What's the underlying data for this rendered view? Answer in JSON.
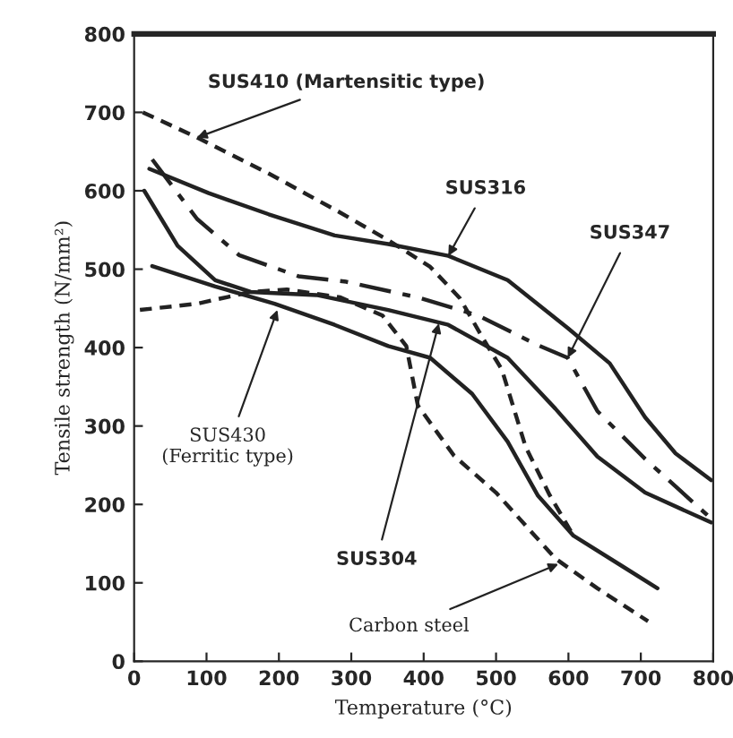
{
  "chart_data": {
    "type": "line",
    "xlabel": "Temperature (°C)",
    "ylabel": "Tensile strength (N/mm²)",
    "xlim": [
      0,
      800
    ],
    "ylim": [
      0,
      800
    ],
    "xticks": [
      0,
      100,
      200,
      300,
      400,
      500,
      600,
      700,
      800
    ],
    "yticks": [
      0,
      100,
      200,
      300,
      400,
      500,
      600,
      700,
      800
    ],
    "grid": false,
    "legend": false,
    "series": [
      {
        "color": "#222222",
        "line_style": "dashed",
        "x": [
          12,
          87,
          186,
          285,
          351,
          409,
          450,
          483,
          508,
          541,
          574,
          607
        ],
        "values": [
          700,
          668,
          622,
          572,
          537,
          503,
          463,
          410,
          372,
          273,
          212,
          160
        ]
      },
      {
        "color": "#222222",
        "line_style": "solid",
        "x": [
          21,
          103,
          186,
          277,
          351,
          434,
          516,
          599,
          657,
          706,
          748,
          797
        ],
        "values": [
          628,
          597,
          570,
          543,
          532,
          517,
          486,
          425,
          380,
          311,
          265,
          231
        ]
      },
      {
        "color": "#222222",
        "line_style": "dashdot",
        "x": [
          25,
          87,
          145,
          227,
          293,
          392,
          475,
          558,
          599,
          640,
          706,
          797
        ],
        "values": [
          640,
          564,
          518,
          491,
          484,
          464,
          441,
          403,
          387,
          319,
          258,
          182
        ]
      },
      {
        "color": "#222222",
        "line_style": "solid",
        "x": [
          14,
          60,
          112,
          161,
          252,
          351,
          434,
          516,
          582,
          640,
          706,
          797
        ],
        "values": [
          600,
          530,
          486,
          471,
          467,
          448,
          429,
          387,
          322,
          261,
          215,
          177
        ]
      },
      {
        "color": "#222222",
        "line_style": "solid",
        "x": [
          25,
          112,
          194,
          277,
          351,
          409,
          467,
          516,
          558,
          607,
          673,
          723
        ],
        "values": [
          504,
          478,
          456,
          429,
          402,
          387,
          341,
          280,
          211,
          160,
          122,
          93
        ]
      },
      {
        "color": "#222222",
        "line_style": "dashed",
        "x": [
          8,
          87,
          161,
          211,
          285,
          343,
          376,
          392,
          442,
          500,
          582,
          640,
          710
        ],
        "values": [
          448,
          456,
          471,
          474,
          464,
          441,
          402,
          326,
          262,
          215,
          131,
          93,
          51
        ]
      }
    ],
    "annotations": [
      {
        "text": "SUS410 (Martensitic type)",
        "x": 87,
        "y": 668
      },
      {
        "text": "SUS316",
        "x": 434,
        "y": 517
      },
      {
        "text": "SUS347",
        "x": 599,
        "y": 387
      },
      {
        "text": "SUS430\n(Ferritic type)",
        "x": 198,
        "y": 448
      },
      {
        "text": "SUS304",
        "x": 421,
        "y": 431
      },
      {
        "text": "Carbon steel",
        "x": 586,
        "y": 124
      }
    ]
  }
}
